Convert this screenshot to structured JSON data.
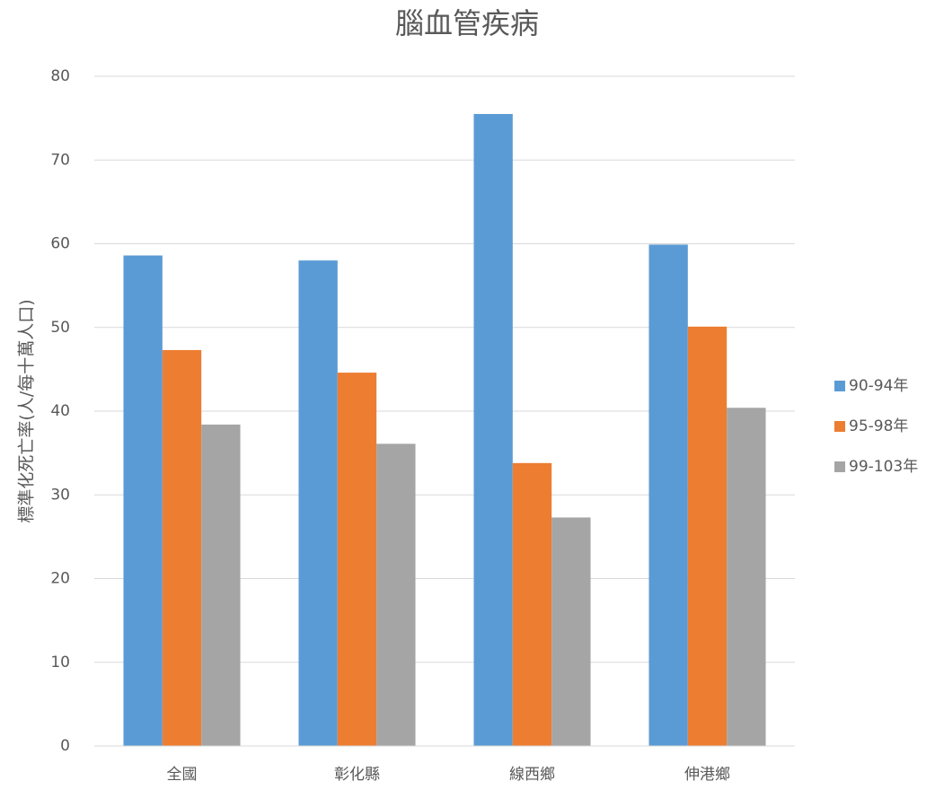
{
  "chart_data": {
    "type": "bar",
    "title": "腦血管疾病",
    "y_label": "標準化死亡率(人/每十萬人口)",
    "categories": [
      "全國",
      "彰化縣",
      "線西鄉",
      "伸港鄉"
    ],
    "series": [
      {
        "name": "90-94年",
        "color": "#5b9bd5",
        "values": [
          58.6,
          58.0,
          75.5,
          59.9
        ]
      },
      {
        "name": "95-98年",
        "color": "#ed7d31",
        "values": [
          47.3,
          44.6,
          33.8,
          50.1
        ]
      },
      {
        "name": "99-103年",
        "color": "#a5a5a5",
        "values": [
          38.4,
          36.1,
          27.3,
          40.4
        ]
      }
    ],
    "ylim": [
      0,
      80
    ],
    "yticks": [
      0,
      10,
      20,
      30,
      40,
      50,
      60,
      70,
      80
    ],
    "grid": true,
    "legend": "right"
  }
}
